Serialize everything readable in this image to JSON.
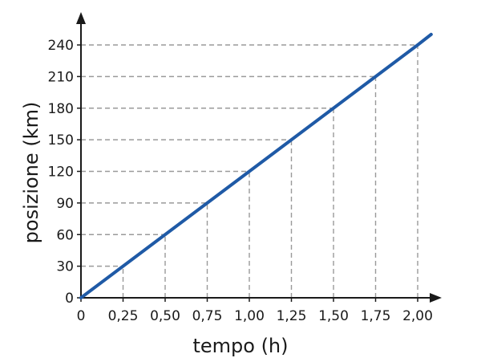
{
  "chart_data": {
    "type": "line",
    "xlabel": "tempo (h)",
    "ylabel": "posizione (km)",
    "xlim": [
      0,
      2.1
    ],
    "ylim": [
      0,
      255
    ],
    "x_ticks": [
      0,
      0.25,
      0.5,
      0.75,
      1.0,
      1.25,
      1.5,
      1.75,
      2.0
    ],
    "x_tick_labels": [
      "0",
      "0,25",
      "0,50",
      "0,75",
      "1,00",
      "1,25",
      "1,50",
      "1,75",
      "2,00"
    ],
    "y_ticks": [
      0,
      30,
      60,
      90,
      120,
      150,
      180,
      210,
      240
    ],
    "y_tick_labels": [
      "0",
      "30",
      "60",
      "90",
      "120",
      "150",
      "180",
      "210",
      "240"
    ],
    "guides": "dashed",
    "series": [
      {
        "color": "#1f5aa6",
        "x": [
          0,
          0.25,
          0.5,
          0.75,
          1.0,
          1.25,
          1.5,
          1.75,
          2.0,
          2.08
        ],
        "y": [
          0,
          30,
          60,
          90,
          120,
          150,
          180,
          210,
          240,
          250
        ]
      }
    ]
  }
}
